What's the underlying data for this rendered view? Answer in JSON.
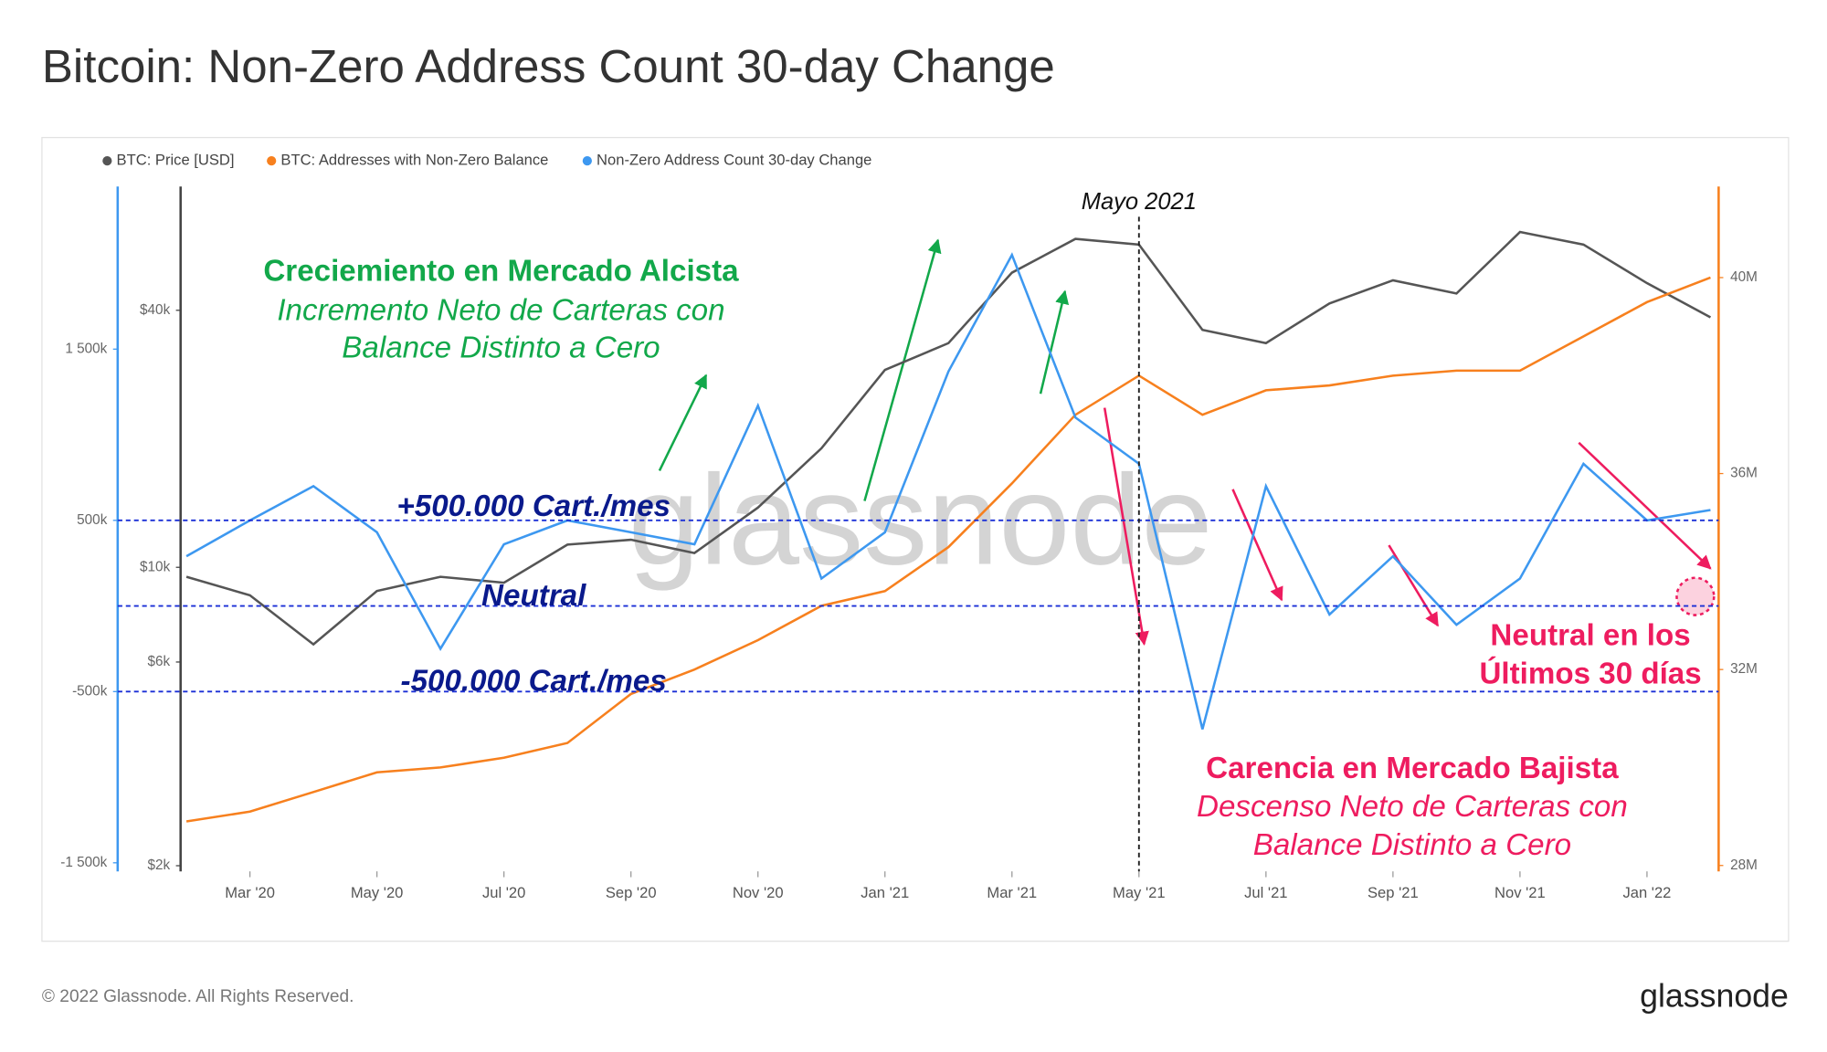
{
  "chart_data": {
    "type": "line",
    "title": "Bitcoin: Non-Zero Address Count 30-day Change",
    "x": [
      "2020-02",
      "2020-03",
      "2020-04",
      "2020-05",
      "2020-06",
      "2020-07",
      "2020-08",
      "2020-09",
      "2020-10",
      "2020-11",
      "2020-12",
      "2021-01",
      "2021-02",
      "2021-03",
      "2021-04",
      "2021-05",
      "2021-06",
      "2021-07",
      "2021-08",
      "2021-09",
      "2021-10",
      "2021-11",
      "2021-12",
      "2022-01",
      "2022-02"
    ],
    "xlim": [
      "2020-02",
      "2022-02"
    ],
    "xticks": [
      {
        "value": "2020-03",
        "label": "Mar '20"
      },
      {
        "value": "2020-05",
        "label": "May '20"
      },
      {
        "value": "2020-07",
        "label": "Jul '20"
      },
      {
        "value": "2020-09",
        "label": "Sep '20"
      },
      {
        "value": "2020-11",
        "label": "Nov '20"
      },
      {
        "value": "2021-01",
        "label": "Jan '21"
      },
      {
        "value": "2021-03",
        "label": "Mar '21"
      },
      {
        "value": "2021-05",
        "label": "May '21"
      },
      {
        "value": "2021-07",
        "label": "Jul '21"
      },
      {
        "value": "2021-09",
        "label": "Sep '21"
      },
      {
        "value": "2021-11",
        "label": "Nov '21"
      },
      {
        "value": "2022-01",
        "label": "Jan '22"
      }
    ],
    "series": [
      {
        "name": "BTC: Price [USD]",
        "color": "#555555",
        "axis": "y3",
        "values": [
          9500,
          8600,
          6600,
          8800,
          9500,
          9200,
          11300,
          11600,
          10800,
          13800,
          19000,
          29000,
          33500,
          49000,
          58800,
          57000,
          36000,
          33500,
          41500,
          47000,
          43800,
          61000,
          57000,
          46300,
          38500
        ]
      },
      {
        "name": "BTC: Addresses with Non-Zero Balance",
        "color": "#f7801e",
        "axis": "y2",
        "values": [
          28900000,
          29100000,
          29500000,
          29900000,
          30000000,
          30200000,
          30500000,
          31500000,
          32000000,
          32600000,
          33300000,
          33600000,
          34500000,
          35800000,
          37200000,
          38000000,
          37200000,
          37700000,
          37800000,
          38000000,
          38100000,
          38100000,
          38800000,
          39500000,
          40000000
        ]
      },
      {
        "name": "Non-Zero Address Count 30-day Change",
        "color": "#3d98f0",
        "axis": "y",
        "values": [
          290000,
          500000,
          700000,
          430000,
          -250000,
          360000,
          500000,
          430000,
          360000,
          1170000,
          160000,
          430000,
          1370000,
          2050000,
          1100000,
          830000,
          -720000,
          700000,
          -50000,
          290000,
          -110000,
          160000,
          830000,
          500000,
          560000
        ]
      }
    ],
    "ylim": [
      -1550000,
      2450000
    ],
    "yticks": [
      {
        "value": 1500000,
        "label": "1 500k"
      },
      {
        "value": 500000,
        "label": "500k"
      },
      {
        "value": -500000,
        "label": "-500k"
      },
      {
        "value": -1500000,
        "label": "-1 500k"
      }
    ],
    "y2lim": [
      27880000,
      41860000
    ],
    "y2ticks": [
      {
        "value": 28000000,
        "label": "28M"
      },
      {
        "value": 32000000,
        "label": "32M"
      },
      {
        "value": 36000000,
        "label": "36M"
      },
      {
        "value": 40000000,
        "label": "40M"
      }
    ],
    "y3lim": [
      1940,
      78000
    ],
    "y3ticks": [
      {
        "value": 2000,
        "label": "$2k"
      },
      {
        "value": 6000,
        "label": "$6k"
      },
      {
        "value": 10000,
        "label": "$10k"
      },
      {
        "value": 40000,
        "label": "$40k"
      }
    ],
    "y3_log_scale": true,
    "reference_lines": [
      500000,
      0,
      -500000
    ],
    "vline": {
      "x": "2021-05",
      "label": "Mayo 2021"
    },
    "annotations": [
      "Creciemiento en Mercado Alcista",
      "Incremento Neto de Carteras con",
      "Balance Distinto a Cero",
      "+500.000 Cart./mes",
      "Neutral",
      "-500.000 Cart./mes",
      "Neutral en los",
      "Últimos 30 días",
      "Carencia en Mercado Bajista",
      "Descenso Neto de Carteras con",
      "Balance Distinto a Cero"
    ],
    "watermark": "glassnode",
    "footer": "© 2022 Glassnode. All Rights Reserved.",
    "logo": "glassnode"
  }
}
